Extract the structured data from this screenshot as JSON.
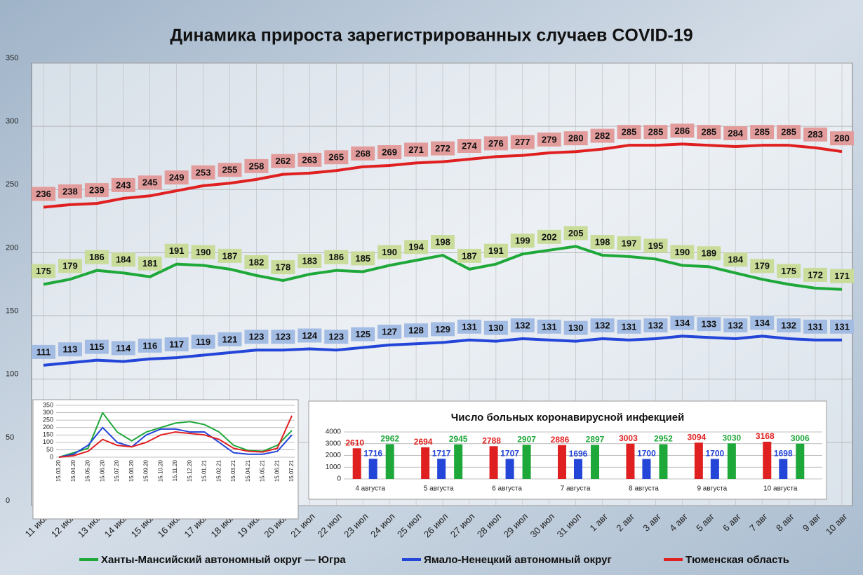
{
  "chart_data": [
    {
      "type": "line",
      "title": "Динамика прироста зарегистрированных случаев COVID-19",
      "categories": [
        "11 июл",
        "12 июл",
        "13 июл",
        "14 июл",
        "15 июл",
        "16 июл",
        "17 июл",
        "18 июл",
        "19 июл",
        "20 июл",
        "21 июл",
        "22 июл",
        "23 июл",
        "24 июл",
        "25 июл",
        "26 июл",
        "27 июл",
        "28 июл",
        "29 июл",
        "30 июл",
        "31 июл",
        "1 авг",
        "2 авг",
        "3 авг",
        "4 авг",
        "5 авг",
        "6 авг",
        "7 авг",
        "8 авг",
        "9 авг",
        "10 авг"
      ],
      "series": [
        {
          "name": "Ханты-Мансийский автономный округ — Югра",
          "color": "#1fa83a",
          "label_color": "#c9dc9a",
          "values": [
            175,
            179,
            186,
            184,
            181,
            191,
            190,
            187,
            182,
            178,
            183,
            186,
            185,
            190,
            194,
            198,
            187,
            191,
            199,
            202,
            205,
            198,
            197,
            195,
            190,
            189,
            184,
            179,
            175,
            172,
            171
          ]
        },
        {
          "name": "Ямало-Ненецкий автономный округ",
          "color": "#2345d8",
          "label_color": "#a3bce4",
          "values": [
            111,
            113,
            115,
            114,
            116,
            117,
            119,
            121,
            123,
            123,
            124,
            123,
            125,
            127,
            128,
            129,
            131,
            130,
            132,
            131,
            130,
            132,
            131,
            132,
            134,
            133,
            132,
            134,
            132,
            131,
            131
          ]
        },
        {
          "name": "Тюменская область",
          "color": "#e02020",
          "label_color": "#e39c9c",
          "values": [
            236,
            238,
            239,
            243,
            245,
            249,
            253,
            255,
            258,
            262,
            263,
            265,
            268,
            269,
            271,
            272,
            274,
            276,
            277,
            279,
            280,
            282,
            285,
            285,
            286,
            285,
            284,
            285,
            285,
            283,
            280
          ]
        }
      ],
      "ylim": [
        0,
        350
      ],
      "yticks": [
        0,
        50,
        100,
        150,
        200,
        250,
        300,
        350
      ],
      "grid": true,
      "legend": "bottom"
    },
    {
      "type": "line",
      "categories": [
        "15.03.20",
        "15.04.20",
        "15.05.20",
        "15.06.20",
        "15.07.20",
        "15.08.20",
        "15.09.20",
        "15.10.20",
        "15.11.20",
        "15.12.20",
        "15.01.21",
        "15.02.21",
        "15.03.21",
        "15.04.21",
        "15.05.21",
        "15.06.21",
        "15.07.21"
      ],
      "series": [
        {
          "color": "#1fa83a",
          "values": [
            0,
            30,
            60,
            300,
            170,
            110,
            170,
            200,
            230,
            240,
            220,
            170,
            80,
            45,
            40,
            80,
            180
          ]
        },
        {
          "color": "#2345d8",
          "values": [
            0,
            20,
            80,
            200,
            100,
            70,
            150,
            190,
            190,
            170,
            170,
            100,
            30,
            20,
            20,
            40,
            150
          ]
        },
        {
          "color": "#e02020",
          "values": [
            0,
            10,
            40,
            120,
            80,
            70,
            100,
            150,
            170,
            160,
            150,
            120,
            60,
            40,
            35,
            60,
            280
          ]
        }
      ],
      "ylim": [
        0,
        350
      ],
      "yticks": [
        0,
        50,
        100,
        150,
        200,
        250,
        300,
        350
      ],
      "grid": true
    },
    {
      "type": "bar",
      "title": "Число больных  коронавирусной  инфекцией",
      "categories": [
        "4 августа",
        "5 августа",
        "6 августа",
        "7 августа",
        "8 августа",
        "9 августа",
        "10 августа"
      ],
      "series": [
        {
          "color": "#e02020",
          "values": [
            2610,
            2694,
            2788,
            2886,
            3003,
            3094,
            3168
          ]
        },
        {
          "color": "#2345d8",
          "values": [
            1716,
            1717,
            1707,
            1696,
            1700,
            1700,
            1698
          ]
        },
        {
          "color": "#1fa83a",
          "values": [
            2962,
            2945,
            2907,
            2897,
            2952,
            3030,
            3006
          ]
        }
      ],
      "ylim": [
        0,
        4000
      ],
      "yticks": [
        0,
        1000,
        2000,
        3000,
        4000
      ],
      "grid": true
    }
  ]
}
